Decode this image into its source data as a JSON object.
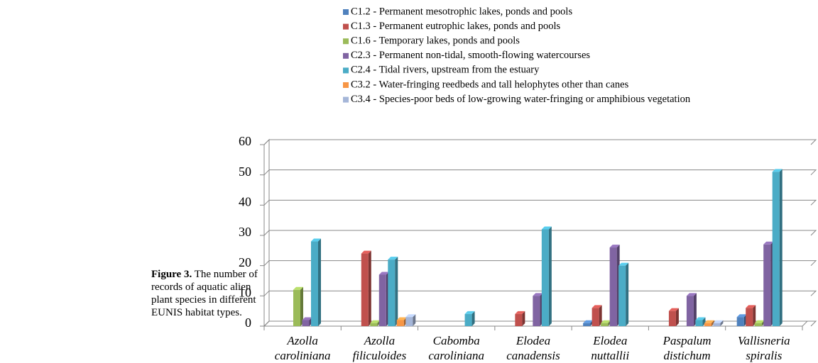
{
  "caption_label": "Figure 3.",
  "caption_text": "The number of records of aquatic alien plant species in different EUNIS habitat types.",
  "chart_data": {
    "type": "bar3d",
    "categories": [
      "Azolla caroliniana",
      "Azolla filiculoides",
      "Cabomba caroliniana",
      "Elodea canadensis",
      "Elodea nuttallii",
      "Paspalum distichum",
      "Vallisneria spiralis"
    ],
    "series": [
      {
        "name": "C1.2 - Permanent mesotrophic lakes, ponds and pools",
        "color": "#4f81bd",
        "values": [
          0,
          0,
          0,
          0,
          1,
          0,
          3
        ]
      },
      {
        "name": "C1.3 - Permanent eutrophic lakes, ponds and pools",
        "color": "#c0504d",
        "values": [
          0,
          24,
          0,
          4,
          6,
          5,
          6
        ]
      },
      {
        "name": "C1.6 - Temporary lakes, ponds and pools",
        "color": "#9bbb59",
        "values": [
          12,
          1,
          0,
          0,
          1,
          0,
          1
        ]
      },
      {
        "name": "C2.3 - Permanent non-tidal, smooth-flowing watercourses",
        "color": "#8064a2",
        "values": [
          2,
          17,
          0,
          10,
          26,
          10,
          27
        ]
      },
      {
        "name": "C2.4 - Tidal rivers, upstream from the estuary",
        "color": "#4bacc6",
        "values": [
          28,
          22,
          4,
          32,
          20,
          2,
          51
        ]
      },
      {
        "name": "C3.2 - Water-fringing reedbeds and tall helophytes other than canes",
        "color": "#f79646",
        "values": [
          0,
          2,
          0,
          0,
          0,
          1,
          0
        ]
      },
      {
        "name": "C3.4 - Species-poor beds of low-growing water-fringing or amphibious vegetation",
        "color": "#a5b6d8",
        "values": [
          0,
          3,
          0,
          0,
          0,
          1,
          0
        ]
      }
    ],
    "ylim": [
      0,
      60
    ],
    "yticks": [
      0,
      10,
      20,
      30,
      40,
      50,
      60
    ],
    "grid": true,
    "legend": "top"
  }
}
